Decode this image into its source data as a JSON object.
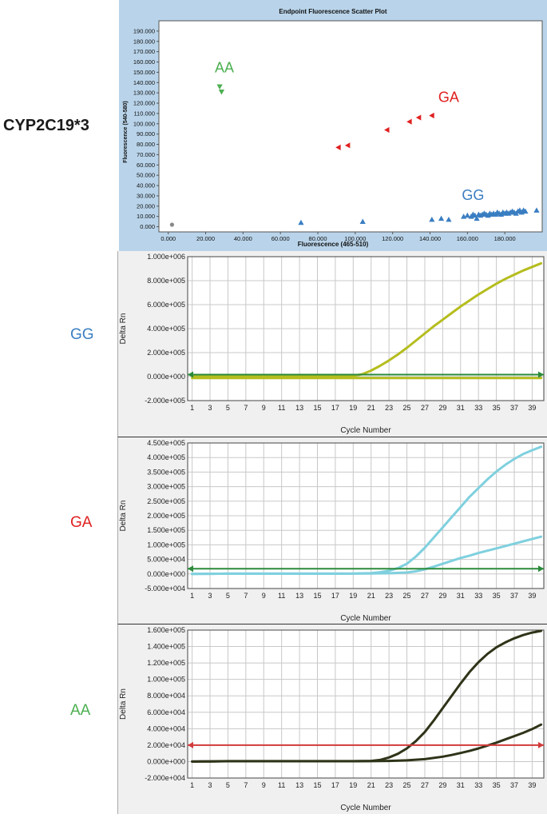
{
  "figure_title": "CYP2C19*3",
  "colors": {
    "AA": "#4caf50",
    "GA": "#e02020",
    "GG": "#3a7ec2",
    "scatter_bg": "#b9d4ea",
    "gg_curve": "#b5bd1e",
    "ga_curve": "#7fd0de",
    "aa_curve": "#2e3418",
    "threshold_green": "#2a8a3a",
    "threshold_red": "#d23b3b"
  },
  "row_labels": {
    "gg": "GG",
    "ga": "GA",
    "aa": "AA"
  },
  "chart_data": [
    {
      "type": "scatter",
      "title": "Endpoint Fluorescence Scatter Plot",
      "xlabel": "Fluorescence (465-510)",
      "ylabel": "Fluorescence (540-580)",
      "xlim": [
        -5000,
        200000
      ],
      "ylim": [
        -5000,
        200000
      ],
      "xticks": [
        "0.000",
        "20.000",
        "40.000",
        "60.000",
        "80.000",
        "100.000",
        "120.000",
        "140.000",
        "160.000",
        "180.000"
      ],
      "yticks": [
        "0.000",
        "10.000",
        "20.000",
        "30.000",
        "40.000",
        "50.000",
        "60.000",
        "70.000",
        "80.000",
        "90.000",
        "100.000",
        "110.000",
        "120.000",
        "130.000",
        "140.000",
        "150.000",
        "160.000",
        "170.000",
        "180.000",
        "190.000"
      ],
      "annotations": [
        {
          "text": "AA",
          "group": "AA",
          "x": 30000,
          "y": 150000
        },
        {
          "text": "GA",
          "group": "GA",
          "x": 150000,
          "y": 121000
        },
        {
          "text": "GG",
          "group": "GG",
          "x": 163000,
          "y": 26000
        }
      ],
      "series": [
        {
          "group": "AA",
          "marker": "triangle-down",
          "points": [
            [
              27500,
              136000
            ],
            [
              28500,
              131000
            ]
          ]
        },
        {
          "group": "GA",
          "marker": "triangle-left",
          "points": [
            [
              91000,
              77000
            ],
            [
              96000,
              79000
            ],
            [
              117000,
              94000
            ],
            [
              129000,
              102000
            ],
            [
              134000,
              106000
            ],
            [
              141000,
              108000
            ]
          ]
        },
        {
          "group": "GG",
          "marker": "triangle-up",
          "points": [
            [
              71000,
              4000
            ],
            [
              104000,
              5000
            ],
            [
              141000,
              7000
            ],
            [
              146000,
              8000
            ],
            [
              150000,
              7000
            ],
            [
              158000,
              10000
            ],
            [
              160000,
              11000
            ],
            [
              162000,
              10000
            ],
            [
              163000,
              12000
            ],
            [
              164000,
              11000
            ],
            [
              165000,
              8000
            ],
            [
              166000,
              12000
            ],
            [
              167000,
              11000
            ],
            [
              168000,
              12000
            ],
            [
              169000,
              13000
            ],
            [
              170000,
              12000
            ],
            [
              171000,
              11000
            ],
            [
              172000,
              13000
            ],
            [
              173000,
              12000
            ],
            [
              174000,
              13000
            ],
            [
              175000,
              12000
            ],
            [
              176000,
              14000
            ],
            [
              177000,
              13000
            ],
            [
              178000,
              12000
            ],
            [
              179000,
              14000
            ],
            [
              180000,
              13000
            ],
            [
              181000,
              14000
            ],
            [
              182000,
              13000
            ],
            [
              183000,
              14000
            ],
            [
              184000,
              15000
            ],
            [
              185000,
              14000
            ],
            [
              186000,
              13000
            ],
            [
              187000,
              15000
            ],
            [
              188000,
              16000
            ],
            [
              189000,
              14000
            ],
            [
              190000,
              16000
            ],
            [
              191000,
              15000
            ],
            [
              197000,
              16000
            ]
          ]
        },
        {
          "group": "NTC",
          "marker": "circle",
          "points": [
            [
              2000,
              2000
            ]
          ]
        }
      ]
    },
    {
      "type": "line",
      "label": "GG",
      "xlabel": "Cycle Number",
      "ylabel": "Delta Rn",
      "xlim": [
        0.5,
        40.3
      ],
      "ylim": [
        -200000,
        1000000
      ],
      "xticks": [
        "1",
        "3",
        "5",
        "7",
        "9",
        "11",
        "13",
        "15",
        "17",
        "19",
        "21",
        "23",
        "25",
        "27",
        "29",
        "31",
        "33",
        "35",
        "37",
        "39"
      ],
      "yticks": [
        "-2.000e+005",
        "0.000e+000",
        "2.000e+005",
        "4.000e+005",
        "6.000e+005",
        "8.000e+005",
        "1.000e+006"
      ],
      "threshold": 17000,
      "series": [
        {
          "x": [
            1,
            3,
            5,
            7,
            9,
            11,
            13,
            15,
            17,
            19,
            20,
            21,
            22,
            23,
            24,
            25,
            26,
            27,
            28,
            29,
            30,
            31,
            32,
            33,
            34,
            35,
            36,
            37,
            38,
            39,
            40
          ],
          "y": [
            5000,
            5000,
            5000,
            5000,
            5000,
            5000,
            5000,
            5000,
            5000,
            6000,
            20000,
            50000,
            90000,
            135000,
            185000,
            240000,
            300000,
            360000,
            420000,
            475000,
            530000,
            585000,
            635000,
            685000,
            730000,
            775000,
            815000,
            850000,
            885000,
            915000,
            945000
          ]
        },
        {
          "x": [
            1,
            3,
            5,
            7,
            9,
            11,
            13,
            15,
            17,
            19,
            21,
            23,
            25,
            27,
            29,
            31,
            33,
            35,
            37,
            39,
            40
          ],
          "y": [
            -12000,
            -12000,
            -12000,
            -12000,
            -12000,
            -12000,
            -12000,
            -12000,
            -12000,
            -12000,
            -12000,
            -12000,
            -12000,
            -12000,
            -12000,
            -12000,
            -12000,
            -12000,
            -12000,
            -12000,
            -12000
          ]
        }
      ]
    },
    {
      "type": "line",
      "label": "GA",
      "xlabel": "Cycle Number",
      "ylabel": "Delta Rn",
      "xlim": [
        0.5,
        40.3
      ],
      "ylim": [
        -50000,
        450000
      ],
      "xticks": [
        "1",
        "3",
        "5",
        "7",
        "9",
        "11",
        "13",
        "15",
        "17",
        "19",
        "21",
        "23",
        "25",
        "27",
        "29",
        "31",
        "33",
        "35",
        "37",
        "39"
      ],
      "yticks": [
        "-5.000e+004",
        "0.000e+000",
        "5.000e+004",
        "1.000e+005",
        "1.500e+005",
        "2.000e+005",
        "2.500e+005",
        "3.000e+005",
        "3.500e+005",
        "4.000e+005",
        "4.500e+005"
      ],
      "threshold": 18000,
      "series": [
        {
          "x": [
            1,
            3,
            5,
            7,
            9,
            11,
            13,
            15,
            17,
            19,
            21,
            22,
            23,
            24,
            25,
            26,
            27,
            28,
            29,
            30,
            31,
            32,
            33,
            34,
            35,
            36,
            37,
            38,
            39,
            40
          ],
          "y": [
            0,
            500,
            1000,
            1000,
            1000,
            1000,
            1000,
            1000,
            1000,
            1500,
            3000,
            6000,
            11000,
            20000,
            35000,
            60000,
            90000,
            125000,
            160000,
            195000,
            230000,
            265000,
            295000,
            325000,
            352000,
            375000,
            395000,
            412000,
            425000,
            437000
          ]
        },
        {
          "x": [
            1,
            3,
            5,
            7,
            9,
            11,
            13,
            15,
            17,
            19,
            21,
            23,
            25,
            26,
            27,
            28,
            29,
            30,
            31,
            32,
            33,
            34,
            35,
            36,
            37,
            38,
            39,
            40
          ],
          "y": [
            0,
            500,
            1000,
            1000,
            1000,
            1000,
            1000,
            1000,
            1000,
            1000,
            1500,
            2500,
            5000,
            9000,
            16000,
            25000,
            35000,
            45000,
            55000,
            63000,
            72000,
            80000,
            88000,
            96000,
            104000,
            112000,
            120000,
            128000
          ]
        }
      ]
    },
    {
      "type": "line",
      "label": "AA",
      "xlabel": "Cycle Number",
      "ylabel": "Delta Rn",
      "xlim": [
        0.5,
        40.3
      ],
      "ylim": [
        -20000,
        160000
      ],
      "xticks": [
        "1",
        "3",
        "5",
        "7",
        "9",
        "11",
        "13",
        "15",
        "17",
        "19",
        "21",
        "23",
        "25",
        "27",
        "29",
        "31",
        "33",
        "35",
        "37",
        "39"
      ],
      "yticks": [
        "-2.000e+004",
        "0.000e+000",
        "2.000e+004",
        "4.000e+004",
        "6.000e+004",
        "8.000e+004",
        "1.000e+005",
        "1.200e+005",
        "1.400e+005",
        "1.600e+005"
      ],
      "threshold": 20000,
      "series": [
        {
          "x": [
            1,
            3,
            5,
            7,
            9,
            11,
            13,
            15,
            17,
            19,
            21,
            22,
            23,
            24,
            25,
            26,
            27,
            28,
            29,
            30,
            31,
            32,
            33,
            34,
            35,
            36,
            37,
            38,
            39,
            40
          ],
          "y": [
            0,
            200,
            500,
            500,
            500,
            500,
            500,
            500,
            500,
            500,
            800,
            2000,
            5000,
            9500,
            16000,
            25000,
            36000,
            50000,
            65000,
            80000,
            95000,
            109000,
            121000,
            131000,
            139000,
            145000,
            150000,
            154000,
            157000,
            159000
          ]
        },
        {
          "x": [
            1,
            3,
            5,
            7,
            9,
            11,
            13,
            15,
            17,
            19,
            21,
            23,
            25,
            27,
            29,
            30,
            31,
            32,
            33,
            34,
            35,
            36,
            37,
            38,
            39,
            40
          ],
          "y": [
            0,
            200,
            400,
            400,
            400,
            400,
            400,
            400,
            400,
            400,
            500,
            800,
            1500,
            3000,
            6000,
            8000,
            10500,
            13000,
            16000,
            19500,
            23000,
            27000,
            31000,
            35000,
            39500,
            45000
          ]
        }
      ]
    }
  ]
}
